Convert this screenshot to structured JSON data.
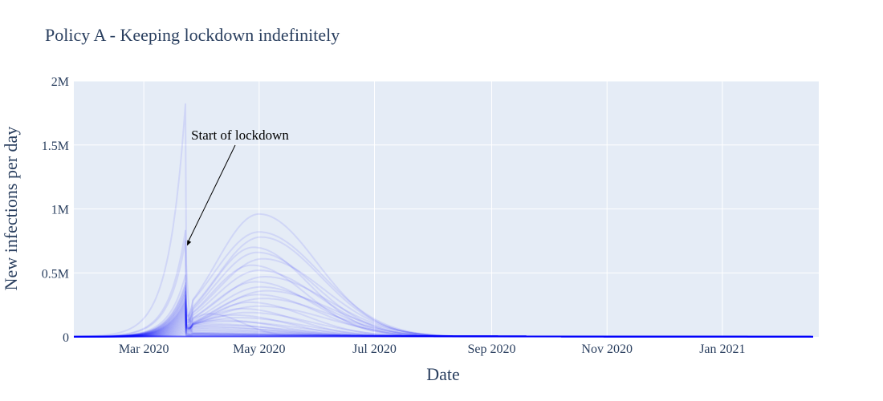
{
  "chart_data": {
    "type": "line",
    "title": "Policy A - Keeping lockdown indefinitely",
    "xlabel": "Date",
    "ylabel": "New infections per day",
    "x_ticks": [
      "Mar 2020",
      "May 2020",
      "Jul 2020",
      "Sep 2020",
      "Nov 2020",
      "Jan 2021"
    ],
    "x_tick_dates": [
      "2020-03-01",
      "2020-05-01",
      "2020-07-01",
      "2020-09-01",
      "2020-11-01",
      "2021-01-01"
    ],
    "xlim": [
      "2020-01-24",
      "2021-02-21"
    ],
    "y_ticks": [
      "0",
      "0.5M",
      "1M",
      "1.5M",
      "2M"
    ],
    "y_tick_values": [
      0,
      500000,
      1000000,
      1500000,
      2000000
    ],
    "ylim": [
      0,
      2000000
    ],
    "grid": true,
    "plot_bgcolor": "#e5ecf6",
    "line_color": "#0000ff",
    "lockdown_date": "2020-03-23",
    "end_date": "2021-02-18",
    "annotation": {
      "text": "Start of lockdown",
      "x": "2020-03-23",
      "y": 700000
    },
    "series": [
      {
        "pre_peak": 1820000,
        "post_peak": 0,
        "post_date": "2020-04-30",
        "width": 30
      },
      {
        "pre_peak": 830000,
        "post_peak": 0,
        "post_date": "2020-04-30",
        "width": 30
      },
      {
        "pre_peak": 750000,
        "post_peak": 180000,
        "post_date": "2020-04-05",
        "width": 18
      },
      {
        "pre_peak": 480000,
        "post_peak": 960000,
        "post_date": "2020-05-01",
        "width": 32
      },
      {
        "pre_peak": 420000,
        "post_peak": 820000,
        "post_date": "2020-05-01",
        "width": 34
      },
      {
        "pre_peak": 400000,
        "post_peak": 780000,
        "post_date": "2020-05-02",
        "width": 33
      },
      {
        "pre_peak": 380000,
        "post_peak": 700000,
        "post_date": "2020-04-28",
        "width": 30
      },
      {
        "pre_peak": 360000,
        "post_peak": 660000,
        "post_date": "2020-04-30",
        "width": 32
      },
      {
        "pre_peak": 350000,
        "post_peak": 610000,
        "post_date": "2020-05-03",
        "width": 34
      },
      {
        "pre_peak": 330000,
        "post_peak": 560000,
        "post_date": "2020-04-27",
        "width": 30
      },
      {
        "pre_peak": 320000,
        "post_peak": 520000,
        "post_date": "2020-05-01",
        "width": 33
      },
      {
        "pre_peak": 300000,
        "post_peak": 470000,
        "post_date": "2020-05-04",
        "width": 35
      },
      {
        "pre_peak": 290000,
        "post_peak": 430000,
        "post_date": "2020-04-29",
        "width": 32
      },
      {
        "pre_peak": 280000,
        "post_peak": 390000,
        "post_date": "2020-05-02",
        "width": 34
      },
      {
        "pre_peak": 270000,
        "post_peak": 360000,
        "post_date": "2020-05-05",
        "width": 36
      },
      {
        "pre_peak": 260000,
        "post_peak": 330000,
        "post_date": "2020-04-30",
        "width": 33
      },
      {
        "pre_peak": 250000,
        "post_peak": 300000,
        "post_date": "2020-05-03",
        "width": 36
      },
      {
        "pre_peak": 240000,
        "post_peak": 270000,
        "post_date": "2020-04-26",
        "width": 31
      },
      {
        "pre_peak": 230000,
        "post_peak": 240000,
        "post_date": "2020-05-01",
        "width": 37
      },
      {
        "pre_peak": 220000,
        "post_peak": 220000,
        "post_date": "2020-04-22",
        "width": 30
      },
      {
        "pre_peak": 210000,
        "post_peak": 190000,
        "post_date": "2020-04-25",
        "width": 35
      },
      {
        "pre_peak": 200000,
        "post_peak": 170000,
        "post_date": "2020-04-18",
        "width": 30
      },
      {
        "pre_peak": 190000,
        "post_peak": 150000,
        "post_date": "2020-04-20",
        "width": 36
      },
      {
        "pre_peak": 180000,
        "post_peak": 130000,
        "post_date": "2020-04-12",
        "width": 32
      },
      {
        "pre_peak": 170000,
        "post_peak": 120000,
        "post_date": "2020-04-15",
        "width": 38
      },
      {
        "pre_peak": 160000,
        "post_peak": 100000,
        "post_date": "2020-04-08",
        "width": 34
      },
      {
        "pre_peak": 150000,
        "post_peak": 90000,
        "post_date": "2020-04-10",
        "width": 40
      },
      {
        "pre_peak": 140000,
        "post_peak": 80000,
        "post_date": "2020-04-05",
        "width": 36
      },
      {
        "pre_peak": 130000,
        "post_peak": 70000,
        "post_date": "2020-04-06",
        "width": 42
      },
      {
        "pre_peak": 120000,
        "post_peak": 60000,
        "post_date": "2020-04-02",
        "width": 40
      },
      {
        "pre_peak": 110000,
        "post_peak": 50000,
        "post_date": "2020-04-01",
        "width": 45
      },
      {
        "pre_peak": 100000,
        "post_peak": 40000,
        "post_date": "2020-03-30",
        "width": 45
      },
      {
        "pre_peak": 90000,
        "post_peak": 30000,
        "post_date": "2020-03-30",
        "width": 50
      },
      {
        "pre_peak": 80000,
        "post_peak": 25000,
        "post_date": "2020-03-28",
        "width": 50
      },
      {
        "pre_peak": 70000,
        "post_peak": 20000,
        "post_date": "2020-03-28",
        "width": 55
      },
      {
        "pre_peak": 60000,
        "post_peak": 15000,
        "post_date": "2020-03-27",
        "width": 55
      },
      {
        "pre_peak": 50000,
        "post_peak": 12000,
        "post_date": "2020-03-27",
        "width": 60
      },
      {
        "pre_peak": 40000,
        "post_peak": 9000,
        "post_date": "2020-03-26",
        "width": 60
      },
      {
        "pre_peak": 30000,
        "post_peak": 7000,
        "post_date": "2020-03-26",
        "width": 65
      },
      {
        "pre_peak": 20000,
        "post_peak": 5000,
        "post_date": "2020-03-25",
        "width": 70
      }
    ]
  }
}
